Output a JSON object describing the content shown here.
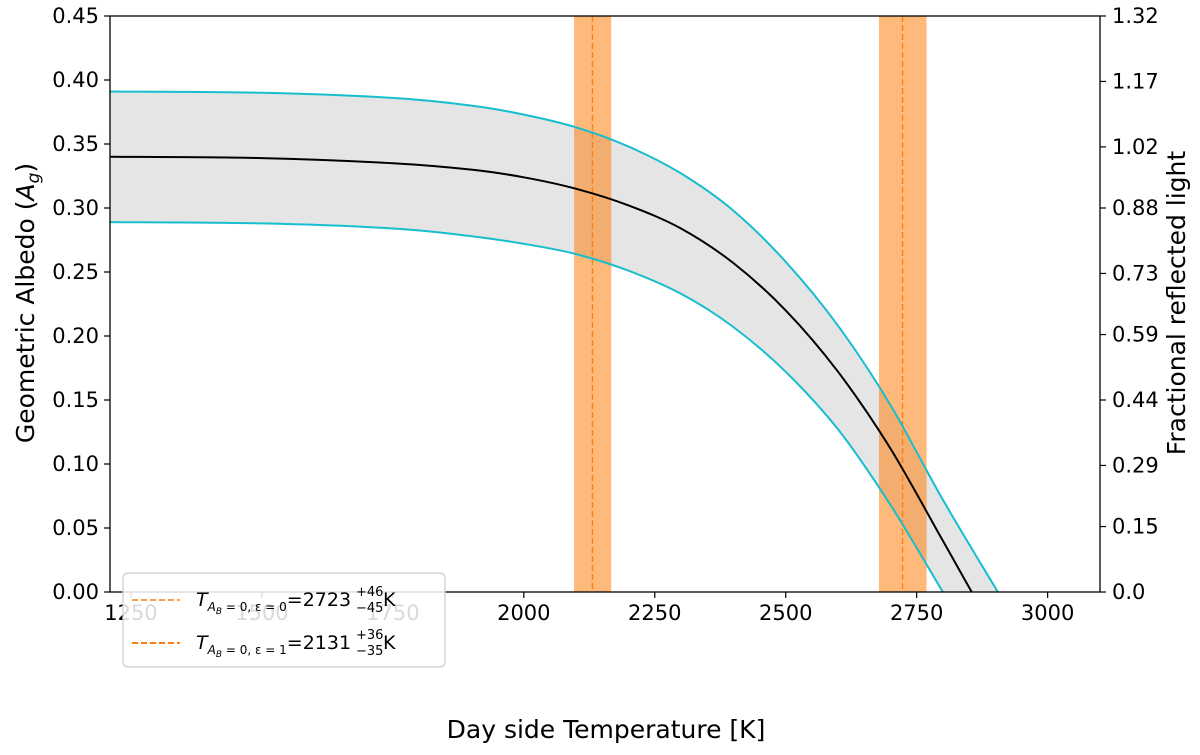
{
  "chart_data": {
    "type": "line",
    "xlabel": "Day side Temperature [K]",
    "ylabel": "Geometric Albedo (",
    "ylabel_symbol": "A",
    "ylabel_sub": "g",
    "ylabel_close": ")",
    "ylabel_right": "Fractional reflected light",
    "xlim": [
      1210,
      3100
    ],
    "ylim": [
      0,
      0.45
    ],
    "ylim_right": [
      0,
      1.32
    ],
    "xticks": [
      "1250",
      "1500",
      "1750",
      "2000",
      "2250",
      "2500",
      "2750",
      "3000"
    ],
    "yticks": [
      "0.00",
      "0.05",
      "0.10",
      "0.15",
      "0.20",
      "0.25",
      "0.30",
      "0.35",
      "0.40",
      "0.45"
    ],
    "yticks_right": [
      "0.0",
      "0.15",
      "0.29",
      "0.44",
      "0.59",
      "0.73",
      "0.88",
      "1.02",
      "1.17",
      "1.32"
    ],
    "grid": false,
    "legend_position": "bottom-left",
    "series": [
      {
        "role": "central",
        "color": "#000000",
        "x": [
          1210,
          1500,
          1750,
          1900,
          2000,
          2100,
          2200,
          2300,
          2400,
          2500,
          2600,
          2700,
          2800,
          2855
        ],
        "y": [
          0.34,
          0.339,
          0.335,
          0.33,
          0.324,
          0.315,
          0.302,
          0.284,
          0.257,
          0.22,
          0.172,
          0.112,
          0.04,
          0.0
        ]
      },
      {
        "role": "upper",
        "color": "#17becf",
        "x": [
          1210,
          1500,
          1750,
          1900,
          2000,
          2100,
          2200,
          2300,
          2400,
          2500,
          2600,
          2700,
          2800,
          2905
        ],
        "y": [
          0.391,
          0.39,
          0.386,
          0.38,
          0.373,
          0.363,
          0.348,
          0.327,
          0.298,
          0.258,
          0.208,
          0.146,
          0.072,
          0.0
        ]
      },
      {
        "role": "lower",
        "color": "#17becf",
        "x": [
          1210,
          1500,
          1750,
          1900,
          2000,
          2100,
          2200,
          2300,
          2400,
          2500,
          2600,
          2700,
          2800
        ],
        "y": [
          0.289,
          0.288,
          0.284,
          0.278,
          0.272,
          0.264,
          0.251,
          0.233,
          0.207,
          0.172,
          0.127,
          0.068,
          0.0
        ]
      }
    ],
    "fill_color": "#e5e5e5",
    "bands": [
      {
        "center": 2723,
        "low": 2678,
        "high": 2769,
        "color": "#ff7f0e",
        "legend_symbol": "T",
        "legend_sub": "A",
        "legend_subsub": "B",
        "legend_sub_rest": " = 0, ε = 0",
        "legend_value": "=2723",
        "legend_plus": "+46",
        "legend_minus": "−45",
        "legend_unit": " K"
      },
      {
        "center": 2131,
        "low": 2096,
        "high": 2167,
        "color": "#ff7f0e",
        "legend_symbol": "T",
        "legend_sub": "A",
        "legend_subsub": "B",
        "legend_sub_rest": " = 0, ε = 1",
        "legend_value": "=2131",
        "legend_plus": "+36",
        "legend_minus": "−35",
        "legend_unit": " K"
      }
    ]
  }
}
